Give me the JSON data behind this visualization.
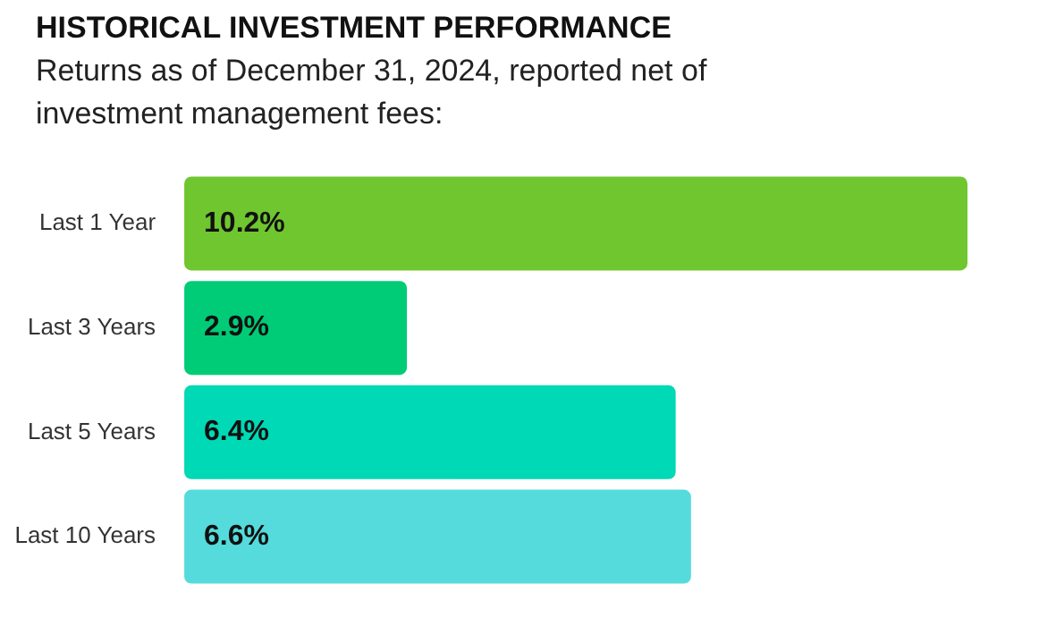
{
  "chart_data": {
    "type": "bar",
    "orientation": "horizontal",
    "title": "HISTORICAL INVESTMENT PERFORMANCE",
    "subtitle": "Returns as of December 31, 2024, reported net of investment management fees:",
    "categories": [
      "Last 1 Year",
      "Last 3 Years",
      "Last 5 Years",
      "Last 10 Years"
    ],
    "values": [
      10.2,
      2.9,
      6.4,
      6.6
    ],
    "colors": [
      "#6fc62f",
      "#00cc77",
      "#00d9b5",
      "#55dbdb"
    ],
    "value_labels": [
      "10.2%",
      "2.9%",
      "6.4%",
      "6.6%"
    ],
    "legend": false
  }
}
